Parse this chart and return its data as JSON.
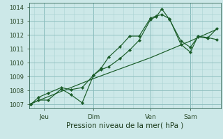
{
  "background_color": "#cce8e8",
  "grid_color_major": "#88bbbb",
  "grid_color_minor": "#aad4d4",
  "line_color": "#1a5c28",
  "title": "Pression niveau de la mer( hPa )",
  "ylabel_values": [
    1007,
    1008,
    1009,
    1010,
    1011,
    1012,
    1013,
    1014
  ],
  "x_ticks_labels": [
    "Jeu",
    "Dim",
    "Ven",
    "Sam"
  ],
  "x_ticks_pos": [
    0.07,
    0.33,
    0.63,
    0.84
  ],
  "line1_x": [
    0.0,
    0.04,
    0.09,
    0.16,
    0.21,
    0.27,
    0.33,
    0.37,
    0.41,
    0.47,
    0.52,
    0.57,
    0.63,
    0.66,
    0.69,
    0.73,
    0.79,
    0.84,
    0.88,
    0.93,
    0.98
  ],
  "line1_y": [
    1007.0,
    1007.3,
    1007.3,
    1008.1,
    1007.7,
    1007.1,
    1009.1,
    1009.6,
    1010.4,
    1011.15,
    1011.9,
    1011.9,
    1013.2,
    1013.35,
    1013.45,
    1013.15,
    1011.3,
    1010.75,
    1011.9,
    1011.8,
    1011.65
  ],
  "line2_x": [
    0.0,
    0.04,
    0.09,
    0.16,
    0.21,
    0.27,
    0.33,
    0.37,
    0.41,
    0.47,
    0.52,
    0.57,
    0.63,
    0.66,
    0.69,
    0.73,
    0.79,
    0.84,
    0.88,
    0.93,
    0.98
  ],
  "line2_y": [
    1007.0,
    1007.5,
    1007.8,
    1008.2,
    1008.05,
    1008.2,
    1009.1,
    1009.5,
    1009.7,
    1010.3,
    1010.9,
    1011.6,
    1013.1,
    1013.3,
    1013.85,
    1013.1,
    1011.55,
    1011.1,
    1011.85,
    1011.75,
    1012.45
  ],
  "line3_x": [
    0.0,
    0.33,
    0.63,
    0.84,
    0.98
  ],
  "line3_y": [
    1007.05,
    1008.85,
    1010.35,
    1011.55,
    1012.4
  ],
  "ylim": [
    1006.7,
    1014.3
  ],
  "xlim": [
    -0.01,
    1.0
  ]
}
